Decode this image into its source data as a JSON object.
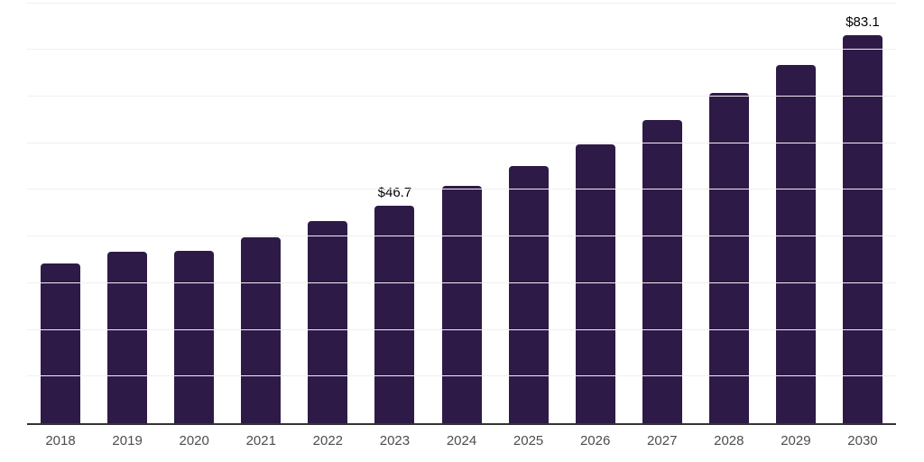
{
  "chart_data": {
    "type": "bar",
    "title": "",
    "xlabel": "",
    "ylabel": "",
    "categories": [
      "2018",
      "2019",
      "2020",
      "2021",
      "2022",
      "2023",
      "2024",
      "2025",
      "2026",
      "2027",
      "2028",
      "2029",
      "2030"
    ],
    "values": [
      34.2,
      36.7,
      37.0,
      39.8,
      43.3,
      46.7,
      50.9,
      55.2,
      59.8,
      64.9,
      70.8,
      76.8,
      83.1
    ],
    "point_labels": [
      null,
      null,
      null,
      null,
      null,
      "$46.7",
      null,
      null,
      null,
      null,
      null,
      null,
      "$83.1"
    ],
    "ylim": [
      0,
      90.7
    ],
    "gridline_step": 10,
    "grid": "horizontal",
    "legend": null,
    "colors": {
      "bar": "#2E1A47",
      "gridline": "#EFEFEF",
      "axis_line": "#333333",
      "tick_label": "#4D4D4D",
      "data_label": "#000000",
      "background": "#FFFFFF"
    }
  }
}
